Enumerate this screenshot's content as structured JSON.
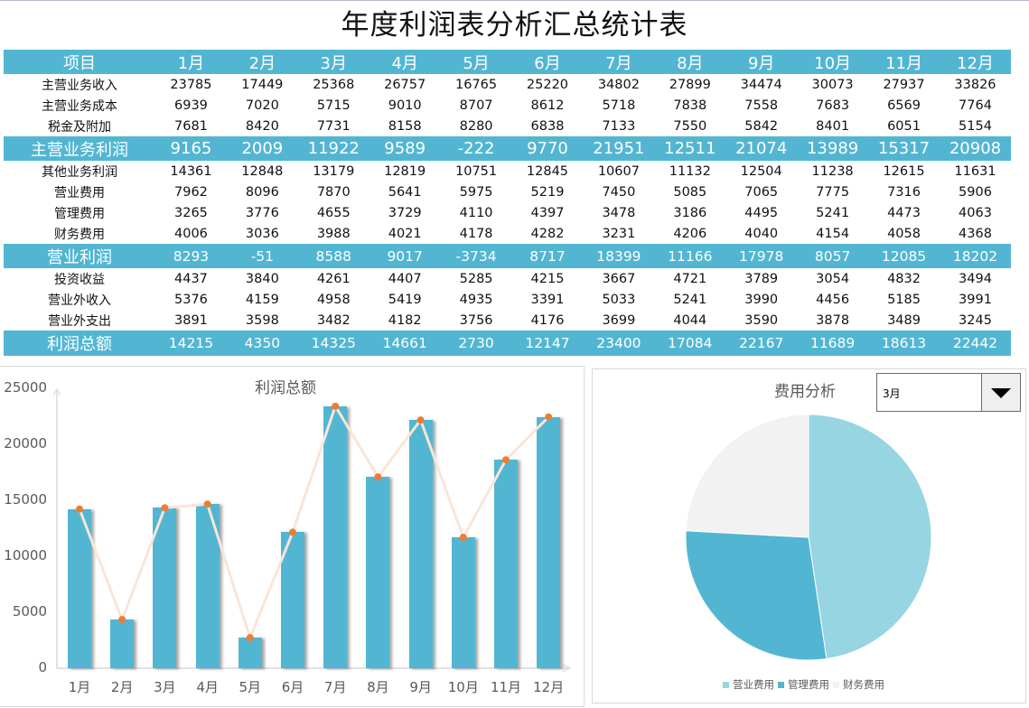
{
  "title": "年度利润表分析汇总统计表",
  "table": {
    "header": [
      "项目",
      "1月",
      "2月",
      "3月",
      "4月",
      "5月",
      "6月",
      "7月",
      "8月",
      "9月",
      "10月",
      "11月",
      "12月"
    ],
    "rows": [
      {
        "label": "主营业务收入",
        "style": "norm",
        "values": [
          "23785",
          "17449",
          "25368",
          "26757",
          "16765",
          "25220",
          "34802",
          "27899",
          "34474",
          "30073",
          "27937",
          "33826"
        ]
      },
      {
        "label": "主营业务成本",
        "style": "norm",
        "values": [
          "6939",
          "7020",
          "5715",
          "9010",
          "8707",
          "8612",
          "5718",
          "7838",
          "7558",
          "7683",
          "6569",
          "7764"
        ]
      },
      {
        "label": "税金及附加",
        "style": "norm",
        "values": [
          "7681",
          "8420",
          "7731",
          "8158",
          "8280",
          "6838",
          "7133",
          "7550",
          "5842",
          "8401",
          "6051",
          "5154"
        ]
      },
      {
        "label": "主营业务利润",
        "style": "band big",
        "values": [
          "9165",
          "2009",
          "11922",
          "9589",
          "-222",
          "9770",
          "21951",
          "12511",
          "21074",
          "13989",
          "15317",
          "20908"
        ]
      },
      {
        "label": "其他业务利润",
        "style": "norm",
        "values": [
          "14361",
          "12848",
          "13179",
          "12819",
          "10751",
          "12845",
          "10607",
          "11132",
          "12504",
          "11238",
          "12615",
          "11631"
        ]
      },
      {
        "label": "营业费用",
        "style": "norm",
        "values": [
          "7962",
          "8096",
          "7870",
          "5641",
          "5975",
          "5219",
          "7450",
          "5085",
          "7065",
          "7775",
          "7316",
          "5906"
        ]
      },
      {
        "label": "管理费用",
        "style": "norm",
        "values": [
          "3265",
          "3776",
          "4655",
          "3729",
          "4110",
          "4397",
          "3478",
          "3186",
          "4495",
          "5241",
          "4473",
          "4063"
        ]
      },
      {
        "label": "财务费用",
        "style": "norm",
        "values": [
          "4006",
          "3036",
          "3988",
          "4021",
          "4178",
          "4282",
          "3231",
          "4206",
          "4040",
          "4154",
          "4058",
          "4368"
        ]
      },
      {
        "label": "营业利润",
        "style": "band mid",
        "values": [
          "8293",
          "-51",
          "8588",
          "9017",
          "-3734",
          "8717",
          "18399",
          "11166",
          "17978",
          "8057",
          "12085",
          "18202"
        ]
      },
      {
        "label": "投资收益",
        "style": "norm",
        "values": [
          "4437",
          "3840",
          "4261",
          "4407",
          "5285",
          "4215",
          "3667",
          "4721",
          "3789",
          "3054",
          "4832",
          "3494"
        ]
      },
      {
        "label": "营业外收入",
        "style": "norm",
        "values": [
          "5376",
          "4159",
          "4958",
          "5419",
          "4935",
          "3391",
          "5033",
          "5241",
          "3990",
          "4456",
          "5185",
          "3991"
        ]
      },
      {
        "label": "营业外支出",
        "style": "norm",
        "values": [
          "3891",
          "3598",
          "3482",
          "4182",
          "3756",
          "4176",
          "3699",
          "4044",
          "3590",
          "3878",
          "3489",
          "3245"
        ]
      },
      {
        "label": "利润总额",
        "style": "band mid last",
        "values": [
          "14215",
          "4350",
          "14325",
          "14661",
          "2730",
          "12147",
          "23400",
          "17084",
          "22167",
          "11689",
          "18613",
          "22442"
        ]
      }
    ]
  },
  "dropdown": {
    "selected": "3月"
  },
  "colors": {
    "accent": "#52b6d2",
    "line": "#fbe5d6",
    "marker": "#ed7d31",
    "pie": [
      "#96d5e1",
      "#52b6d2",
      "#f2f2f2"
    ]
  },
  "chart_data": [
    {
      "type": "bar",
      "title": "利润总额",
      "categories": [
        "1月",
        "2月",
        "3月",
        "4月",
        "5月",
        "6月",
        "7月",
        "8月",
        "9月",
        "10月",
        "11月",
        "12月"
      ],
      "series": [
        {
          "name": "利润总额 (柱)",
          "kind": "bar",
          "values": [
            14215,
            4350,
            14325,
            14661,
            2730,
            12147,
            23400,
            17084,
            22167,
            11689,
            18613,
            22442
          ]
        },
        {
          "name": "利润总额 (折线)",
          "kind": "line",
          "values": [
            14215,
            4350,
            14325,
            14661,
            2730,
            12147,
            23400,
            17084,
            22167,
            11689,
            18613,
            22442
          ]
        }
      ],
      "yticks": [
        "0",
        "5000",
        "10000",
        "15000",
        "20000",
        "25000"
      ],
      "ylim": [
        0,
        25000
      ],
      "xlabel": "",
      "ylabel": "",
      "grid": false,
      "legend": "none"
    },
    {
      "type": "pie",
      "title": "费用分析",
      "month": "3月",
      "labels": [
        "营业费用",
        "管理费用",
        "财务费用"
      ],
      "values": [
        7870,
        4655,
        3988
      ],
      "legend": "bottom"
    }
  ]
}
